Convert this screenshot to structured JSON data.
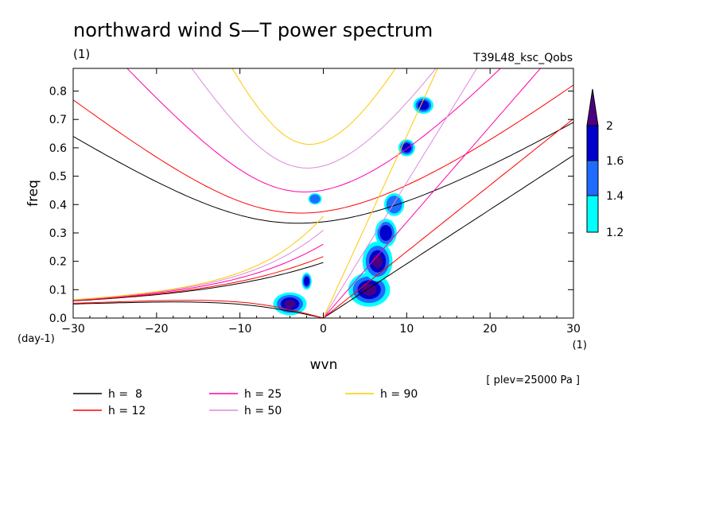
{
  "chart_data": {
    "type": "contour",
    "title": "northward wind S—T power spectrum",
    "unit_label": "(1)",
    "run_label": "T39L48_ksc_Qobs",
    "xlabel": "wvn",
    "ylabel": "freq",
    "x_unit": "(1)",
    "y_unit": "(day-1)",
    "xlim": [
      -30,
      30
    ],
    "ylim": [
      0,
      0.88
    ],
    "x_ticks": [
      -30,
      -20,
      -10,
      0,
      10,
      20,
      30
    ],
    "x_tick_labels": [
      "−30",
      "−20",
      "−10",
      "0",
      "10",
      "20",
      "30"
    ],
    "y_ticks": [
      0,
      0.1,
      0.2,
      0.3,
      0.4,
      0.5,
      0.6,
      0.7,
      0.8
    ],
    "y_tick_labels": [
      "0.0",
      "0.1",
      "0.2",
      "0.3",
      "0.4",
      "0.5",
      "0.6",
      "0.7",
      "0.8"
    ],
    "level_note": "[ plev=25000 Pa ]",
    "colorbar": {
      "labels": [
        "1.2",
        "1.4",
        "1.6",
        "2"
      ],
      "colors": [
        "#00ffff",
        "#1e6cff",
        "#0000cd",
        "#4b0082"
      ]
    },
    "dispersion_curves": [
      {
        "name": "h =  8",
        "h": 8,
        "color": "#000000"
      },
      {
        "name": "h = 12",
        "h": 12,
        "color": "#ff0000"
      },
      {
        "name": "h = 25",
        "h": 25,
        "color": "#ff00aa"
      },
      {
        "name": "h = 50",
        "h": 50,
        "color": "#dd88dd"
      },
      {
        "name": "h = 90",
        "h": 90,
        "color": "#ffc800"
      }
    ],
    "power_blobs": [
      {
        "x": 5.5,
        "y": 0.1,
        "rx": 2.5,
        "ry": 0.06,
        "level": 4
      },
      {
        "x": 6.5,
        "y": 0.2,
        "rx": 1.8,
        "ry": 0.07,
        "level": 4
      },
      {
        "x": 7.5,
        "y": 0.3,
        "rx": 1.3,
        "ry": 0.05,
        "level": 3
      },
      {
        "x": 8.5,
        "y": 0.4,
        "rx": 1.2,
        "ry": 0.04,
        "level": 2
      },
      {
        "x": 10,
        "y": 0.6,
        "rx": 1.0,
        "ry": 0.03,
        "level": 3
      },
      {
        "x": 12,
        "y": 0.75,
        "rx": 1.2,
        "ry": 0.03,
        "level": 3
      },
      {
        "x": -4,
        "y": 0.05,
        "rx": 2.0,
        "ry": 0.04,
        "level": 4
      },
      {
        "x": -2,
        "y": 0.13,
        "rx": 0.6,
        "ry": 0.03,
        "level": 3
      },
      {
        "x": -1,
        "y": 0.42,
        "rx": 0.8,
        "ry": 0.02,
        "level": 2
      }
    ]
  },
  "legend_title": "",
  "legend": [
    {
      "label": "h =  8",
      "color": "#000000"
    },
    {
      "label": "h = 12",
      "color": "#ff0000"
    },
    {
      "label": "h = 25",
      "color": "#ff00aa"
    },
    {
      "label": "h = 50",
      "color": "#dd88dd"
    },
    {
      "label": "h = 90",
      "color": "#ffc800"
    }
  ]
}
